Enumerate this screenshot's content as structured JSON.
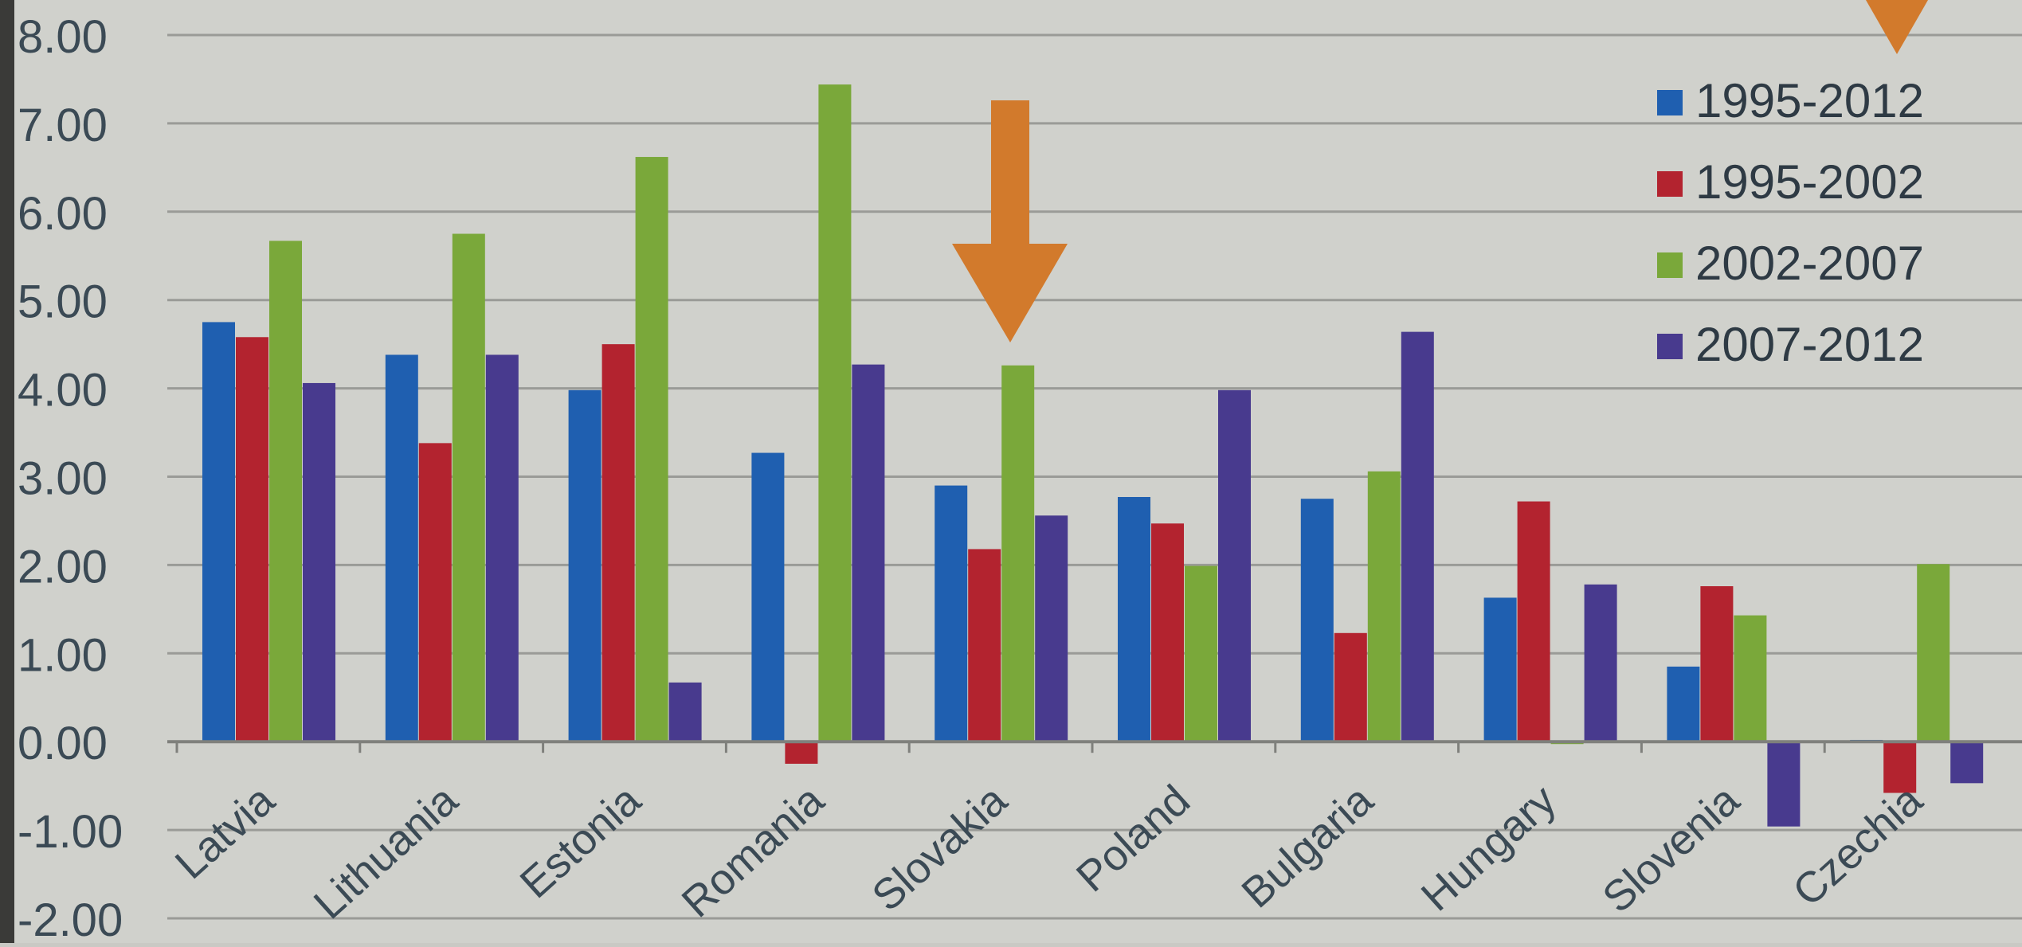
{
  "chart_data": {
    "type": "bar",
    "title": "",
    "xlabel": "",
    "ylabel": "",
    "categories": [
      "Latvia",
      "Lithuania",
      "Estonia",
      "Romania",
      "Slovakia",
      "Poland",
      "Bulgaria",
      "Hungary",
      "Slovenia",
      "Czechia"
    ],
    "series": [
      {
        "name": "1995-2012",
        "color": "#1f5fb0",
        "values": [
          4.75,
          4.38,
          3.98,
          3.27,
          2.9,
          2.77,
          2.75,
          1.63,
          0.85,
          0.02
        ]
      },
      {
        "name": "1995-2002",
        "color": "#b3232f",
        "values": [
          4.58,
          3.38,
          4.5,
          -0.25,
          2.18,
          2.47,
          1.23,
          2.72,
          1.76,
          -0.58
        ]
      },
      {
        "name": "2002-2007",
        "color": "#7aa83a",
        "values": [
          5.67,
          5.75,
          6.62,
          7.44,
          4.26,
          1.99,
          3.06,
          0.0,
          1.43,
          2.01
        ]
      },
      {
        "name": "2007-2012",
        "color": "#483a8e",
        "values": [
          4.06,
          4.38,
          0.67,
          4.27,
          2.56,
          3.98,
          4.64,
          1.78,
          -0.96,
          -0.47
        ]
      }
    ],
    "ylim": [
      -2,
      8
    ],
    "yticks": [
      "8.00",
      "7.00",
      "6.00",
      "5.00",
      "4.00",
      "3.00",
      "2.00",
      "1.00",
      "0.00",
      "-1.00",
      "-2.00"
    ],
    "grid": true,
    "legend": "top-right",
    "annotations": [
      {
        "type": "arrow",
        "points_to": "Slovakia",
        "color": "#d27a2c"
      },
      {
        "type": "arrow",
        "points_to": "legend",
        "color": "#d27a2c"
      }
    ]
  }
}
